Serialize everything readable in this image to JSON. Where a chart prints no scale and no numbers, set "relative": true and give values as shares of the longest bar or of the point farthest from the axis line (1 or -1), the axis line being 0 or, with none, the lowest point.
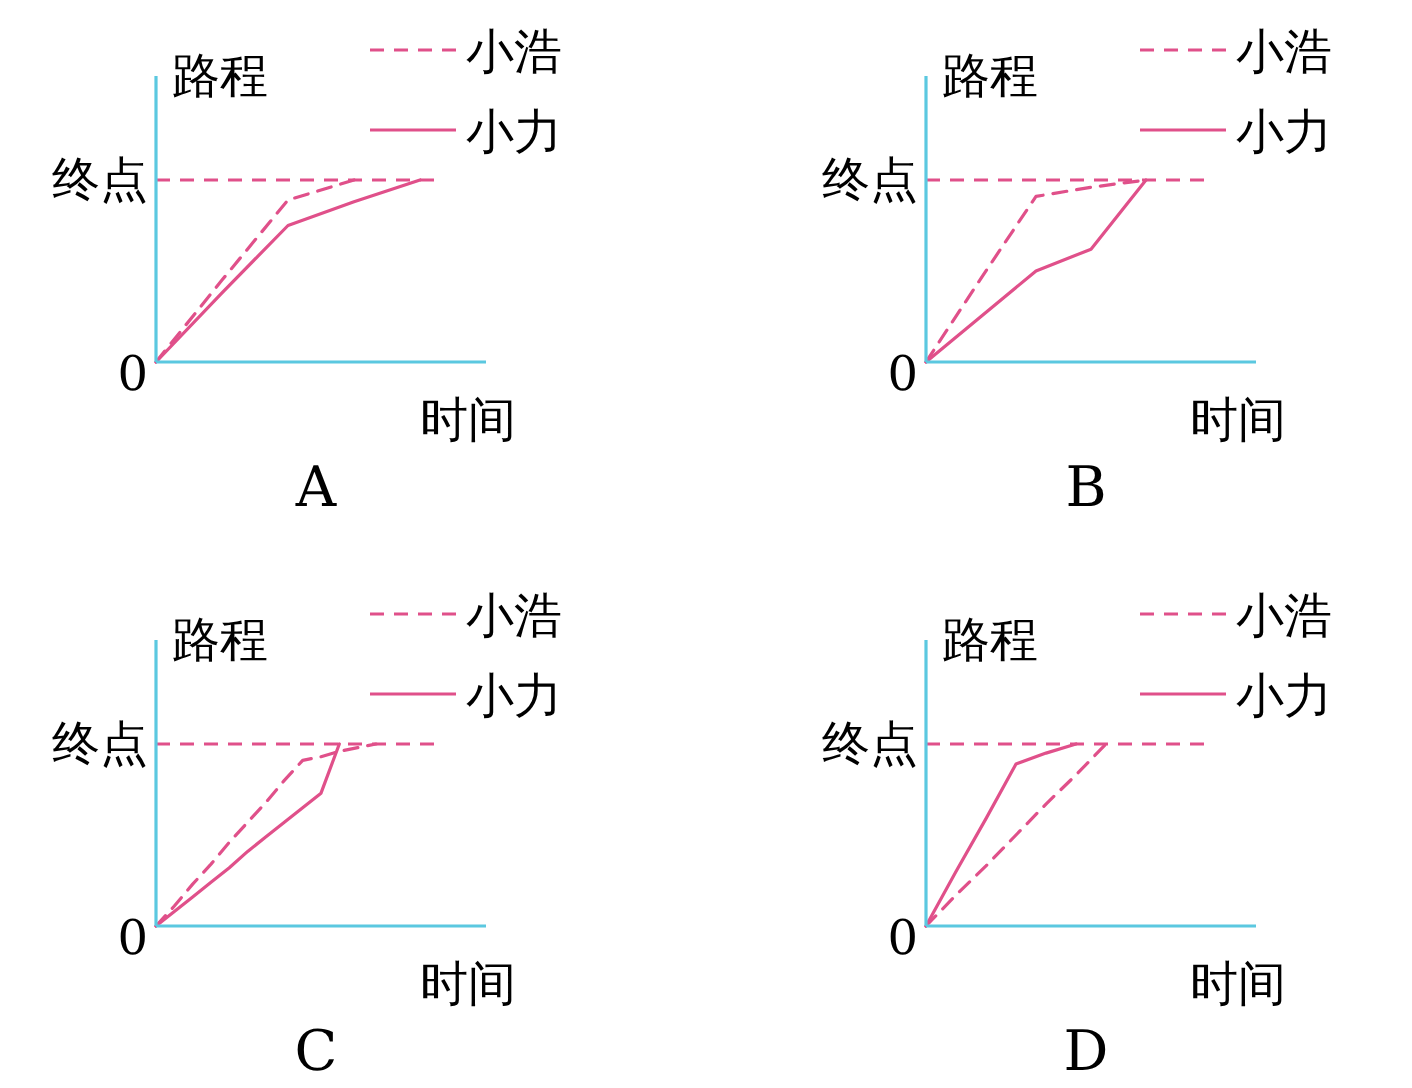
{
  "chart_data": [
    {
      "type": "line",
      "title": "A",
      "xlabel": "时间",
      "ylabel": "路程",
      "legend": "top right",
      "relative": true,
      "annotations": [
        "0"
      ],
      "categories": [
        null,
        null,
        null,
        null,
        null,
        null
      ],
      "ref_lines": [
        {
          "axis": "y",
          "value": 1,
          "label": "终点",
          "color": "#e0508a",
          "line_style": "dashed"
        }
      ],
      "series": [
        {
          "name": "小浩",
          "color": "#e0508a",
          "line_style": "dashed",
          "values": [
            0,
            0.45,
            0.89,
            1,
            null,
            null
          ]
        },
        {
          "name": "小力",
          "color": "#e0508a",
          "line_style": "solid",
          "values": [
            0,
            0.38,
            0.75,
            0.88,
            1,
            null
          ]
        }
      ]
    },
    {
      "type": "line",
      "title": "B",
      "xlabel": "时间",
      "ylabel": "路程",
      "legend": "top right",
      "relative": true,
      "annotations": [
        "0"
      ],
      "categories": [
        null,
        null,
        null,
        null,
        null,
        null,
        null
      ],
      "ref_lines": [
        {
          "axis": "y",
          "value": 1,
          "label": "终点",
          "color": "#e0508a",
          "line_style": "dashed"
        }
      ],
      "series": [
        {
          "name": "小浩",
          "color": "#e0508a",
          "line_style": "dashed",
          "values": [
            0,
            0.46,
            0.91,
            0.96,
            1,
            null,
            null
          ]
        },
        {
          "name": "小力",
          "color": "#e0508a",
          "line_style": "solid",
          "values": [
            0,
            0.25,
            0.5,
            0.62,
            1,
            null,
            null
          ]
        }
      ]
    },
    {
      "type": "line",
      "title": "C",
      "xlabel": "时间",
      "ylabel": "路程",
      "legend": "top right",
      "relative": true,
      "annotations": [
        "0"
      ],
      "categories": [
        null,
        null,
        null,
        null,
        null,
        null,
        null,
        null,
        null,
        null,
        null,
        null,
        null,
        null,
        null,
        null,
        null,
        null,
        null
      ],
      "ref_lines": [
        {
          "axis": "y",
          "value": 1,
          "label": "终点",
          "color": "#e0508a",
          "line_style": "dashed"
        }
      ],
      "series": [
        {
          "name": "小浩",
          "color": "#e0508a",
          "line_style": "dashed",
          "values": [
            0,
            0.11,
            0.23,
            0.34,
            0.46,
            0.57,
            0.68,
            0.8,
            0.91,
            0.93,
            0.96,
            0.98,
            1,
            null,
            null,
            null,
            null,
            null,
            null
          ]
        },
        {
          "name": "小力",
          "color": "#e0508a",
          "line_style": "solid",
          "values": [
            0,
            0.08,
            0.16,
            0.24,
            0.32,
            0.41,
            0.49,
            0.57,
            0.65,
            0.73,
            1,
            null,
            null,
            null,
            null,
            null,
            null,
            null,
            null
          ]
        }
      ]
    },
    {
      "type": "line",
      "title": "D",
      "xlabel": "时间",
      "ylabel": "路程",
      "legend": "top right",
      "relative": true,
      "annotations": [
        "0"
      ],
      "categories": [
        null,
        null,
        null,
        null,
        null,
        null,
        null,
        null,
        null,
        null,
        null,
        null
      ],
      "ref_lines": [
        {
          "axis": "y",
          "value": 1,
          "label": "终点",
          "color": "#e0508a",
          "line_style": "dashed"
        }
      ],
      "series": [
        {
          "name": "小浩",
          "color": "#e0508a",
          "line_style": "dashed",
          "values": [
            0,
            0.17,
            0.33,
            0.5,
            0.67,
            0.83,
            1,
            null,
            null,
            null,
            null,
            null
          ]
        },
        {
          "name": "小力",
          "color": "#e0508a",
          "line_style": "solid",
          "values": [
            0,
            0.3,
            0.59,
            0.89,
            0.95,
            1,
            null,
            null,
            null,
            null,
            null,
            null
          ]
        }
      ]
    }
  ]
}
